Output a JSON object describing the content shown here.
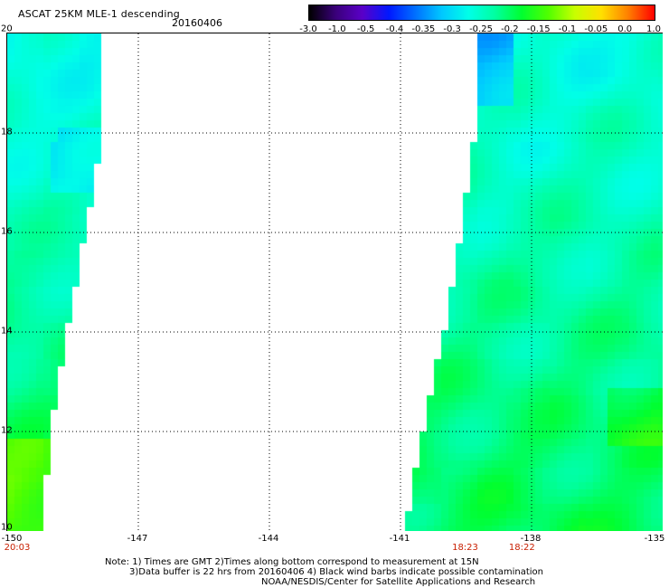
{
  "header": {
    "title": "ASCAT 25KM MLE-1 descending",
    "date": "20160406"
  },
  "colorbar": {
    "labels": [
      "-3.0",
      "-1.0",
      "-0.5",
      "-0.4",
      "-0.35",
      "-0.3",
      "-0.25",
      "-0.2",
      "-0.15",
      "-0.1",
      "-0.05",
      "0.0",
      "1.0"
    ],
    "colors": [
      "#000000",
      "#3a007a",
      "#5a00c8",
      "#0018ff",
      "#0070ff",
      "#00c8ff",
      "#00ffe8",
      "#00ffa0",
      "#00ff30",
      "#50ff00",
      "#c8ff00",
      "#ffe000",
      "#ff8000",
      "#ff0000"
    ]
  },
  "axes": {
    "lat_labels": [
      "20",
      "18",
      "16",
      "14",
      "12",
      "10"
    ],
    "lon_labels": [
      "-150",
      "-147",
      "-144",
      "-141",
      "-138",
      "-135"
    ],
    "time_labels": [
      {
        "text": "20:03",
        "lon": -150
      },
      {
        "text": "18:23",
        "lon": -139.5
      },
      {
        "text": "18:22",
        "lon": -138.2
      }
    ]
  },
  "map": {
    "lat_range": [
      10,
      20
    ],
    "lon_range": [
      -150,
      -135
    ],
    "left_swath_edge": [
      [
        20,
        -147.8
      ],
      [
        17.6,
        -147.9
      ],
      [
        16.0,
        -148.2
      ],
      [
        14.2,
        -148.6
      ],
      [
        12.0,
        -149.0
      ],
      [
        10.0,
        -149.2
      ]
    ],
    "right_swath_edge": [
      [
        20,
        -139.2
      ],
      [
        18.0,
        -139.3
      ],
      [
        16.0,
        -139.6
      ],
      [
        14.0,
        -140.0
      ],
      [
        12.0,
        -140.5
      ],
      [
        10.0,
        -140.9
      ]
    ]
  },
  "notes": {
    "line1": "Note: 1) Times are GMT 2)Times along bottom correspond to measurement at 15N",
    "line2": "3)Data buffer is 22 hrs from 20160406 4) Black wind barbs indicate possible contamination",
    "line3": "NOAA/NESDIS/Center for Satellite Applications and Research"
  }
}
